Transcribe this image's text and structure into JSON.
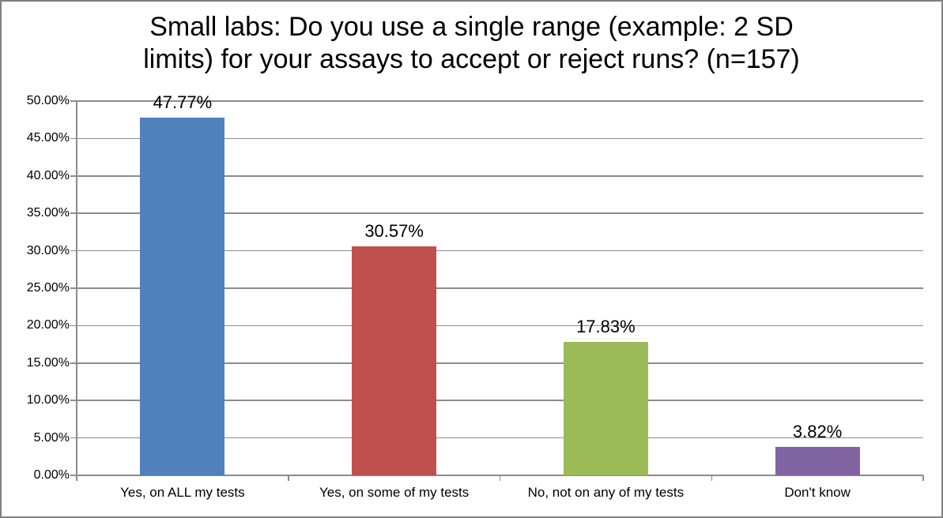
{
  "chart_data": {
    "type": "bar",
    "title": "Small labs: Do you use a single range (example: 2 SD limits) for your assays to accept or reject runs? (n=157)",
    "categories": [
      "Yes, on ALL my tests",
      "Yes, on some of my tests",
      "No, not on any of my tests",
      "Don't know"
    ],
    "values": [
      47.77,
      30.57,
      17.83,
      3.82
    ],
    "data_labels": [
      "47.77%",
      "30.57%",
      "17.83%",
      "3.82%"
    ],
    "bar_colors": [
      "#4f81bd",
      "#c0504d",
      "#9bbb59",
      "#8064a2"
    ],
    "ytick_labels": [
      "0.00%",
      "5.00%",
      "10.00%",
      "15.00%",
      "20.00%",
      "25.00%",
      "30.00%",
      "35.00%",
      "40.00%",
      "45.00%",
      "50.00%"
    ],
    "ytick_step": 5,
    "ylim": [
      0,
      50
    ],
    "xlabel": "",
    "ylabel": "",
    "grid": "horizontal",
    "legend": "none",
    "colors": {
      "gridline": "#8c8c8c",
      "axis": "#8c8c8c",
      "frame_border": "#808080",
      "background": "#ffffff",
      "text": "#000000"
    }
  }
}
